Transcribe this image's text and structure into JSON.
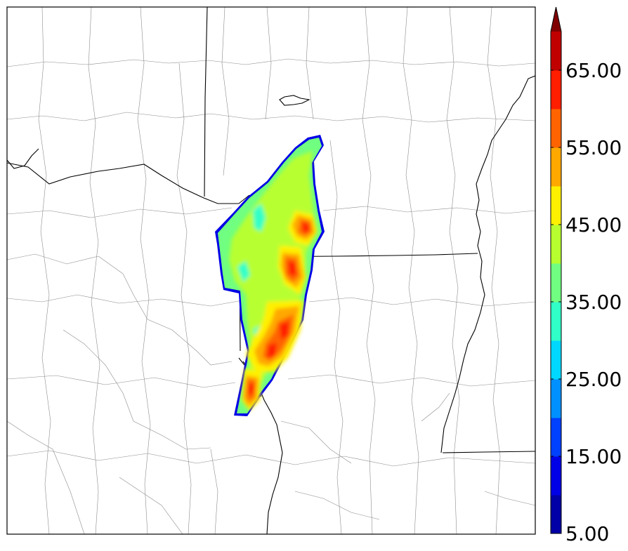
{
  "colorbar": {
    "min": 5,
    "max": 70,
    "step": 5,
    "extend": "max",
    "tick_labels": [
      "5.00",
      "15.00",
      "25.00",
      "35.00",
      "45.00",
      "55.00",
      "65.00"
    ],
    "tick_values": [
      5,
      15,
      25,
      35,
      45,
      55,
      65
    ],
    "colors": [
      "#0000a6",
      "#0000e6",
      "#0040ff",
      "#0090ff",
      "#00d8ff",
      "#30ffc8",
      "#70ff80",
      "#b8ff30",
      "#fff000",
      "#ffa800",
      "#ff6400",
      "#ff1e00",
      "#c00000"
    ],
    "extend_color": "#800000"
  },
  "map": {
    "background": "#ffffff",
    "county_line_color": "#8c8c8c",
    "state_line_color": "#000000"
  }
}
